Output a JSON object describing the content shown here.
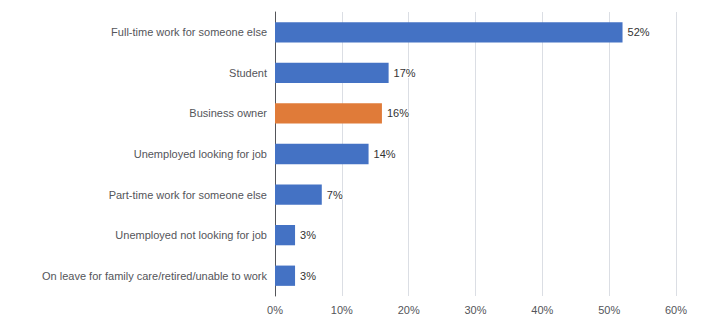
{
  "chart_data": {
    "type": "bar",
    "orientation": "horizontal",
    "categories": [
      "On leave for family care/retired/unable to work",
      "Unemployed not looking for job",
      "Part-time work for someone else",
      "Unemployed looking for job",
      "Business owner",
      "Student",
      "Full-time work for someone else"
    ],
    "values": [
      3,
      3,
      7,
      14,
      16,
      17,
      52
    ],
    "value_labels": [
      "3%",
      "3%",
      "7%",
      "14%",
      "16%",
      "17%",
      "52%"
    ],
    "data_labels": true,
    "colors": [
      "#4472C4",
      "#4472C4",
      "#4472C4",
      "#4472C4",
      "#E07B39",
      "#4472C4",
      "#4472C4"
    ],
    "xlim": [
      0,
      60
    ],
    "xticks": [
      {
        "value": 0,
        "label": "0%"
      },
      {
        "value": 10,
        "label": "10%"
      },
      {
        "value": 20,
        "label": "20%"
      },
      {
        "value": 30,
        "label": "30%"
      },
      {
        "value": 40,
        "label": "40%"
      },
      {
        "value": 50,
        "label": "50%"
      },
      {
        "value": 60,
        "label": "60%"
      }
    ],
    "grid": true
  }
}
